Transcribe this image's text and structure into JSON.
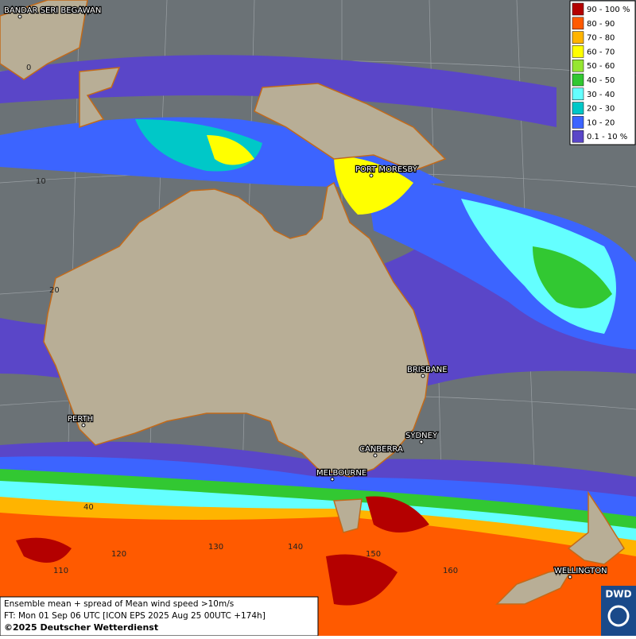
{
  "map": {
    "legend": [
      {
        "label": "90 - 100 %",
        "color": "#b40000"
      },
      {
        "label": "80 - 90",
        "color": "#ff5a00"
      },
      {
        "label": "70 - 80",
        "color": "#ffb400"
      },
      {
        "label": "60 - 70",
        "color": "#ffff00"
      },
      {
        "label": "50 - 60",
        "color": "#96e632"
      },
      {
        "label": "40 - 50",
        "color": "#32c832"
      },
      {
        "label": "30 - 40",
        "color": "#64ffff"
      },
      {
        "label": "20 - 30",
        "color": "#00c8c8"
      },
      {
        "label": "10 - 20",
        "color": "#3c64ff"
      },
      {
        "label": "0.1 - 10 %",
        "color": "#5a46c8"
      }
    ],
    "cities": [
      "BANDAR SERI BEGAWAN",
      "PORT MORESBY",
      "BRISBANE",
      "PERTH",
      "SYDNEY",
      "CANBERRA",
      "MELBOURNE",
      "WELLINGTON"
    ],
    "grid_labels": [
      "0",
      "10",
      "20",
      "40",
      "110",
      "120",
      "130",
      "140",
      "150",
      "160"
    ],
    "caption": [
      "Ensemble mean + spread of Mean wind speed >10m/s",
      "FT: Mon 01 Sep 06 UTC [ICON EPS 2025 Aug 25 00UTC +174h]",
      "©2025 Deutscher Wetterdienst"
    ],
    "logo": "DWD"
  }
}
